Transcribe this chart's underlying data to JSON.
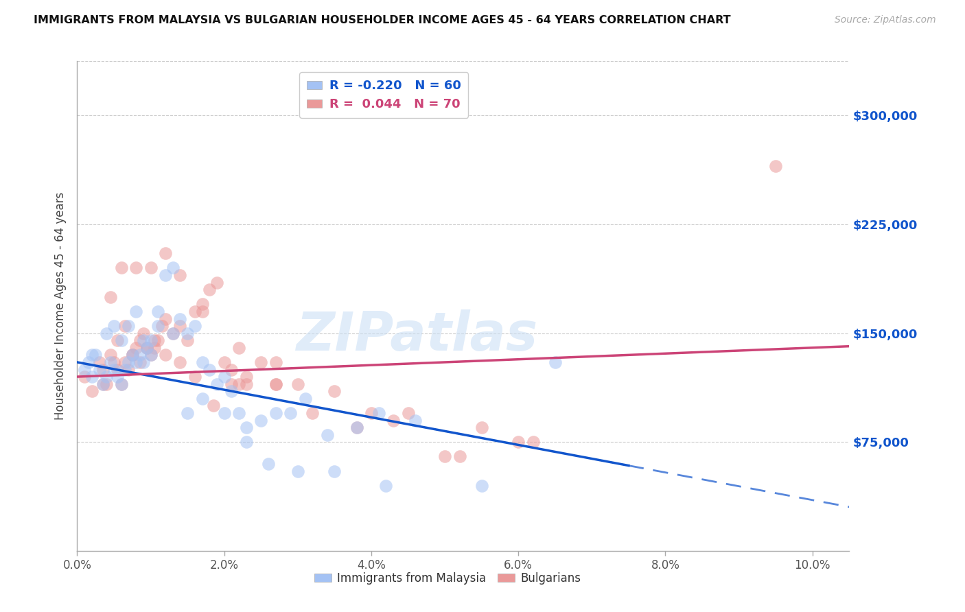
{
  "title": "IMMIGRANTS FROM MALAYSIA VS BULGARIAN HOUSEHOLDER INCOME AGES 45 - 64 YEARS CORRELATION CHART",
  "source": "Source: ZipAtlas.com",
  "ylabel": "Householder Income Ages 45 - 64 years",
  "xlabel_ticks": [
    "0.0%",
    "2.0%",
    "4.0%",
    "6.0%",
    "8.0%",
    "10.0%"
  ],
  "xlabel_vals": [
    0.0,
    2.0,
    4.0,
    6.0,
    8.0,
    10.0
  ],
  "ylim": [
    0,
    337500
  ],
  "xlim": [
    0.0,
    10.5
  ],
  "ytick_labels": [
    "$75,000",
    "$150,000",
    "$225,000",
    "$300,000"
  ],
  "ytick_vals": [
    75000,
    150000,
    225000,
    300000
  ],
  "legend_r_blue": "-0.220",
  "legend_n_blue": "60",
  "legend_r_pink": "0.044",
  "legend_n_pink": "70",
  "blue_color": "#a4c2f4",
  "pink_color": "#ea9999",
  "blue_fill_color": "#a4c2f4",
  "pink_fill_color": "#ea9999",
  "blue_line_color": "#1155cc",
  "pink_line_color": "#cc4477",
  "watermark": "ZIPatlas",
  "blue_scatter_x": [
    0.1,
    0.15,
    0.2,
    0.25,
    0.3,
    0.35,
    0.4,
    0.45,
    0.5,
    0.55,
    0.6,
    0.65,
    0.7,
    0.75,
    0.8,
    0.85,
    0.9,
    0.95,
    1.0,
    1.1,
    1.2,
    1.3,
    1.4,
    1.5,
    1.6,
    1.7,
    1.8,
    1.9,
    2.0,
    2.1,
    2.2,
    2.3,
    2.5,
    2.7,
    2.9,
    3.1,
    3.4,
    3.8,
    4.1,
    4.6,
    0.2,
    0.4,
    0.5,
    0.6,
    0.7,
    0.8,
    0.9,
    1.0,
    1.1,
    1.3,
    1.5,
    1.7,
    2.0,
    2.3,
    2.6,
    3.0,
    3.5,
    4.2,
    5.5,
    6.5
  ],
  "blue_scatter_y": [
    125000,
    130000,
    120000,
    135000,
    125000,
    115000,
    120000,
    130000,
    125000,
    120000,
    115000,
    125000,
    130000,
    135000,
    130000,
    135000,
    130000,
    140000,
    135000,
    165000,
    190000,
    195000,
    160000,
    150000,
    155000,
    130000,
    125000,
    115000,
    120000,
    110000,
    95000,
    85000,
    90000,
    95000,
    95000,
    105000,
    80000,
    85000,
    95000,
    90000,
    135000,
    150000,
    155000,
    145000,
    155000,
    165000,
    145000,
    145000,
    155000,
    150000,
    95000,
    105000,
    95000,
    75000,
    60000,
    55000,
    55000,
    45000,
    45000,
    130000
  ],
  "pink_scatter_x": [
    0.1,
    0.2,
    0.3,
    0.35,
    0.4,
    0.45,
    0.5,
    0.55,
    0.6,
    0.65,
    0.7,
    0.75,
    0.8,
    0.85,
    0.9,
    0.95,
    1.0,
    1.05,
    1.1,
    1.15,
    1.2,
    1.3,
    1.4,
    1.5,
    1.6,
    1.7,
    1.8,
    1.9,
    2.0,
    2.1,
    2.2,
    2.3,
    2.5,
    2.7,
    3.0,
    3.5,
    4.0,
    4.5,
    5.0,
    5.5,
    0.35,
    0.55,
    0.65,
    0.75,
    0.85,
    0.95,
    1.05,
    1.2,
    1.4,
    1.6,
    1.85,
    2.1,
    2.3,
    2.7,
    3.2,
    3.8,
    4.3,
    5.2,
    6.0,
    6.2,
    0.45,
    0.6,
    0.8,
    1.0,
    1.2,
    1.4,
    1.7,
    2.2,
    2.7,
    9.5
  ],
  "pink_scatter_y": [
    120000,
    110000,
    130000,
    125000,
    115000,
    135000,
    130000,
    125000,
    115000,
    130000,
    125000,
    135000,
    140000,
    145000,
    150000,
    140000,
    135000,
    140000,
    145000,
    155000,
    160000,
    150000,
    155000,
    145000,
    165000,
    170000,
    180000,
    185000,
    130000,
    125000,
    115000,
    120000,
    130000,
    115000,
    115000,
    110000,
    95000,
    95000,
    65000,
    85000,
    115000,
    145000,
    155000,
    135000,
    130000,
    140000,
    145000,
    135000,
    130000,
    120000,
    100000,
    115000,
    115000,
    115000,
    95000,
    85000,
    90000,
    65000,
    75000,
    75000,
    175000,
    195000,
    195000,
    195000,
    205000,
    190000,
    165000,
    140000,
    130000,
    265000
  ],
  "blue_line_x0": 0.0,
  "blue_line_x_solid_end": 7.5,
  "blue_line_x_dash_end": 10.5,
  "blue_line_y0": 130000,
  "blue_line_slope": -9500,
  "pink_line_x0": 0.0,
  "pink_line_x_end": 10.5,
  "pink_line_y0": 120000,
  "pink_line_slope": 2000
}
